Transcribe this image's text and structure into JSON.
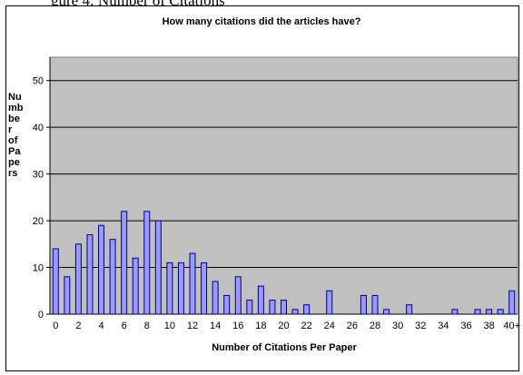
{
  "caption_fragment": "gure 4: Number of Citations",
  "chart_data": {
    "type": "bar",
    "title": "How many citations did the articles have?",
    "xlabel": "Number of Citations Per Paper",
    "ylabel": "Nu\nmb\nbe\nr\nof\nPa\npe\nrs",
    "categories": [
      "0",
      "1",
      "2",
      "3",
      "4",
      "5",
      "6",
      "7",
      "8",
      "9",
      "10",
      "11",
      "12",
      "13",
      "14",
      "15",
      "16",
      "17",
      "18",
      "19",
      "20",
      "21",
      "22",
      "23",
      "24",
      "25",
      "26",
      "27",
      "28",
      "29",
      "30",
      "31",
      "32",
      "33",
      "34",
      "35",
      "36",
      "37",
      "38",
      "39",
      "40+"
    ],
    "tick_labels": [
      "0",
      "2",
      "4",
      "6",
      "8",
      "10",
      "12",
      "14",
      "16",
      "18",
      "20",
      "22",
      "24",
      "26",
      "28",
      "30",
      "32",
      "34",
      "36",
      "38",
      "40+"
    ],
    "values": [
      14,
      8,
      15,
      17,
      19,
      16,
      22,
      12,
      22,
      20,
      11,
      11,
      13,
      11,
      7,
      4,
      8,
      3,
      6,
      3,
      3,
      1,
      2,
      0,
      5,
      0,
      0,
      4,
      4,
      1,
      0,
      2,
      0,
      0,
      0,
      1,
      0,
      1,
      1,
      1,
      5
    ],
    "ylim": [
      0,
      55
    ],
    "yticks": [
      0,
      10,
      20,
      30,
      40,
      50
    ],
    "grid": true,
    "colors": {
      "plot_bg": "#c0c0c0",
      "bar": "#9999ff",
      "bar_edge": "#000080",
      "grid": "#000000"
    }
  }
}
